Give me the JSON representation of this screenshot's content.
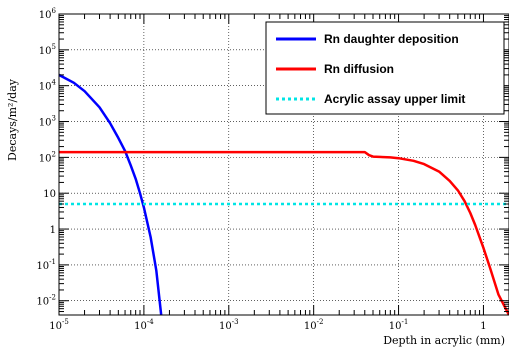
{
  "chart_data": {
    "type": "line",
    "xlabel": "Depth in acrylic (mm)",
    "ylabel": "Decays/m²/day",
    "x_scale": "log",
    "y_scale": "log",
    "xlim": [
      1e-05,
      2
    ],
    "ylim": [
      0.004,
      1000000
    ],
    "grid": true,
    "legend_position": "top-right",
    "x_ticks": [
      {
        "value": 1e-05,
        "base": "10",
        "exp": "-5"
      },
      {
        "value": 0.0001,
        "base": "10",
        "exp": "-4"
      },
      {
        "value": 0.001,
        "base": "10",
        "exp": "-3"
      },
      {
        "value": 0.01,
        "base": "10",
        "exp": "-2"
      },
      {
        "value": 0.1,
        "base": "10",
        "exp": "-1"
      },
      {
        "value": 1,
        "base": "1",
        "exp": ""
      }
    ],
    "y_ticks": [
      {
        "value": 1000000,
        "base": "10",
        "exp": "6"
      },
      {
        "value": 100000,
        "base": "10",
        "exp": "5"
      },
      {
        "value": 10000,
        "base": "10",
        "exp": "4"
      },
      {
        "value": 1000,
        "base": "10",
        "exp": "3"
      },
      {
        "value": 100,
        "base": "10",
        "exp": "2"
      },
      {
        "value": 10,
        "base": "10",
        "exp": ""
      },
      {
        "value": 1,
        "base": "1",
        "exp": ""
      },
      {
        "value": 0.1,
        "base": "10",
        "exp": "-1"
      },
      {
        "value": 0.01,
        "base": "10",
        "exp": "-2"
      }
    ],
    "series": [
      {
        "name": "Rn daughter deposition",
        "color": "#0000ff",
        "style": "solid",
        "x": [
          1e-05,
          1.5e-05,
          2e-05,
          3e-05,
          4e-05,
          5e-05,
          6e-05,
          7e-05,
          8e-05,
          9e-05,
          0.0001,
          0.00012,
          0.00014,
          0.00016
        ],
        "y": [
          20000,
          12000,
          7000,
          2500,
          900,
          350,
          150,
          60,
          25,
          10,
          4,
          0.6,
          0.07,
          0.004
        ]
      },
      {
        "name": "Rn diffusion",
        "color": "#ff0000",
        "style": "solid",
        "x": [
          1e-05,
          0.001,
          0.01,
          0.04,
          0.045,
          0.05,
          0.08,
          0.1,
          0.15,
          0.2,
          0.3,
          0.4,
          0.5,
          0.6,
          0.7,
          0.8,
          1.0,
          1.2,
          1.5,
          2.0
        ],
        "y": [
          140,
          140,
          140,
          140,
          115,
          105,
          100,
          95,
          80,
          65,
          40,
          22,
          12,
          6,
          2.8,
          1.3,
          0.3,
          0.08,
          0.015,
          0.004
        ]
      },
      {
        "name": "Acrylic assay upper limit",
        "color": "#00e5e5",
        "style": "dashed",
        "x": [
          1e-05,
          2
        ],
        "y": [
          5,
          5
        ]
      }
    ]
  }
}
